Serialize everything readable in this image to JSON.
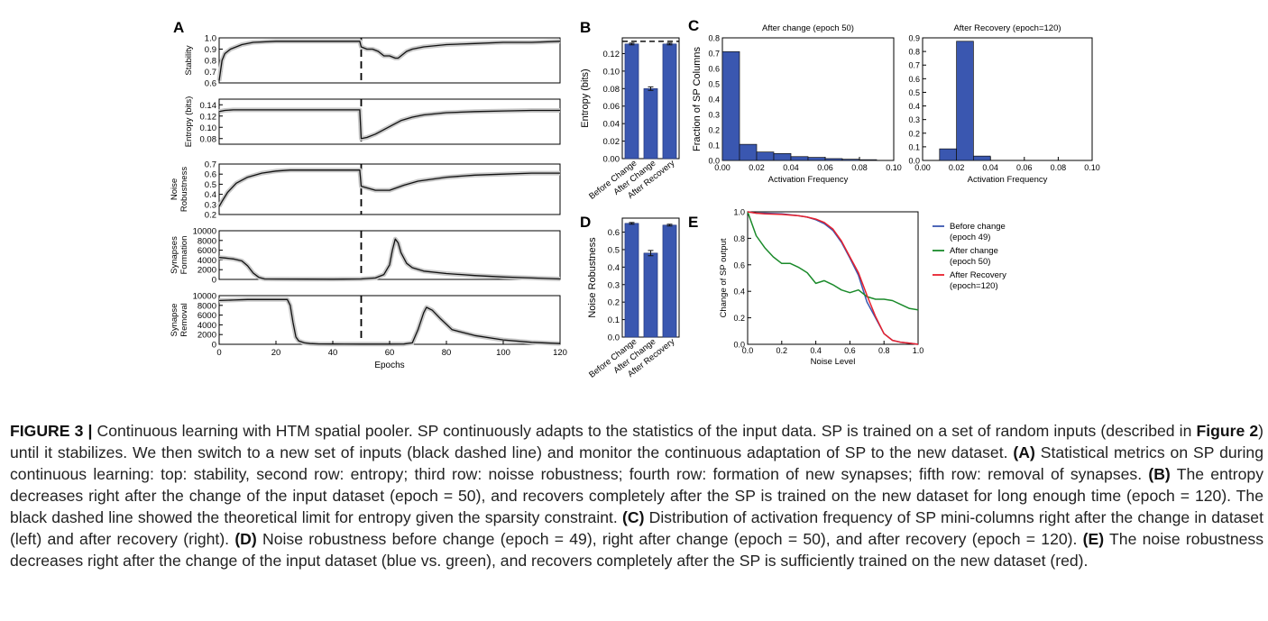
{
  "figure": {
    "panel_labels": {
      "A": "A",
      "B": "B",
      "C": "C",
      "D": "D",
      "E": "E"
    },
    "colors": {
      "blue": "#3a57b0",
      "green": "#1a8a2a",
      "red": "#e8202c",
      "bar": "#3a57b0",
      "axis": "#000000",
      "band": "#c9c9c9"
    }
  },
  "chart_data": [
    {
      "id": "A1",
      "type": "line",
      "ylabel": "Stability",
      "xlim": [
        0,
        120
      ],
      "ylim": [
        0.6,
        1.0
      ],
      "yticks": [
        "1.0",
        "0.9",
        "0.8",
        "0.7",
        "0.6"
      ],
      "change_epoch": 50,
      "x": [
        0,
        1,
        2,
        4,
        8,
        12,
        20,
        30,
        40,
        49.5,
        50,
        52,
        54,
        56,
        58,
        60,
        62,
        63,
        64,
        66,
        68,
        72,
        80,
        90,
        100,
        110,
        120
      ],
      "y": [
        0.62,
        0.8,
        0.86,
        0.9,
        0.94,
        0.96,
        0.97,
        0.97,
        0.97,
        0.97,
        0.92,
        0.9,
        0.9,
        0.88,
        0.84,
        0.84,
        0.82,
        0.82,
        0.84,
        0.88,
        0.9,
        0.92,
        0.94,
        0.95,
        0.96,
        0.96,
        0.97
      ]
    },
    {
      "id": "A2",
      "type": "line",
      "ylabel": "Entropy (bits)",
      "xlim": [
        0,
        120
      ],
      "ylim": [
        0.07,
        0.15
      ],
      "yticks": [
        "0.14",
        "0.12",
        "0.10",
        "0.08"
      ],
      "change_epoch": 50,
      "x": [
        0,
        2,
        5,
        10,
        20,
        30,
        40,
        49.5,
        50,
        52,
        55,
        58,
        61,
        64,
        68,
        72,
        80,
        90,
        100,
        110,
        120
      ],
      "y": [
        0.128,
        0.13,
        0.131,
        0.131,
        0.131,
        0.131,
        0.131,
        0.131,
        0.08,
        0.082,
        0.088,
        0.096,
        0.104,
        0.112,
        0.118,
        0.122,
        0.126,
        0.128,
        0.129,
        0.13,
        0.13
      ]
    },
    {
      "id": "A3",
      "type": "line",
      "ylabel": "Noise Robustness",
      "xlim": [
        0,
        120
      ],
      "ylim": [
        0.2,
        0.7
      ],
      "yticks": [
        "0.7",
        "0.6",
        "0.5",
        "0.4",
        "0.3",
        "0.2"
      ],
      "change_epoch": 50,
      "x": [
        0,
        1,
        3,
        6,
        10,
        15,
        20,
        25,
        30,
        40,
        49.5,
        50,
        55,
        60,
        65,
        70,
        80,
        90,
        100,
        110,
        120
      ],
      "y": [
        0.28,
        0.33,
        0.42,
        0.51,
        0.57,
        0.61,
        0.63,
        0.64,
        0.64,
        0.64,
        0.64,
        0.48,
        0.44,
        0.44,
        0.49,
        0.53,
        0.57,
        0.59,
        0.6,
        0.61,
        0.61
      ]
    },
    {
      "id": "A4",
      "type": "line",
      "ylabel": "Synapses Formation",
      "xlim": [
        0,
        120
      ],
      "ylim": [
        0,
        10000
      ],
      "yticks": [
        "10000",
        "8000",
        "6000",
        "4000",
        "2000",
        "0"
      ],
      "change_epoch": 50,
      "x": [
        0,
        2,
        5,
        8,
        10,
        12,
        14,
        16,
        20,
        30,
        40,
        50,
        55,
        58,
        60,
        61,
        62,
        63,
        64,
        66,
        68,
        72,
        80,
        90,
        100,
        110,
        120
      ],
      "y": [
        4500,
        4400,
        4200,
        3800,
        2800,
        1300,
        400,
        100,
        80,
        50,
        40,
        100,
        300,
        1000,
        3000,
        6000,
        8300,
        7500,
        5500,
        3300,
        2400,
        1700,
        1200,
        800,
        500,
        300,
        100
      ]
    },
    {
      "id": "A5",
      "type": "line",
      "ylabel": "Synapse Removal",
      "xlim": [
        0,
        120
      ],
      "ylim": [
        0,
        10000
      ],
      "yticks": [
        "10000",
        "8000",
        "6000",
        "4000",
        "2000",
        "0"
      ],
      "change_epoch": 50,
      "x": [
        0,
        5,
        10,
        15,
        20,
        24,
        25,
        26,
        27,
        28,
        30,
        32,
        35,
        40,
        50,
        60,
        65,
        68,
        70,
        72,
        73,
        75,
        78,
        82,
        90,
        100,
        110,
        120
      ],
      "y": [
        9000,
        9100,
        9200,
        9200,
        9200,
        9200,
        8000,
        4500,
        1500,
        700,
        300,
        150,
        80,
        50,
        40,
        40,
        50,
        300,
        3000,
        6500,
        7600,
        7000,
        5200,
        3000,
        1800,
        900,
        400,
        150
      ]
    },
    {
      "id": "A_xaxis",
      "xlabel": "Epochs",
      "xticks": [
        "0",
        "20",
        "40",
        "60",
        "80",
        "100",
        "120"
      ]
    },
    {
      "id": "B",
      "type": "bar",
      "ylabel": "Entropy (bits)",
      "categories": [
        "Before Change",
        "After Change",
        "After Recovery"
      ],
      "values": [
        0.131,
        0.08,
        0.131
      ],
      "errors": [
        0.001,
        0.002,
        0.001
      ],
      "limit": 0.134,
      "ylim": [
        0,
        0.138
      ],
      "yticks": [
        "0.12",
        "0.10",
        "0.08",
        "0.06",
        "0.04",
        "0.02",
        "0.00"
      ]
    },
    {
      "id": "C1",
      "type": "bar",
      "title": "After change (epoch 50)",
      "xlabel": "Activation Frequency",
      "ylabel": "Fraction of SP Columns",
      "xlim": [
        0,
        0.1
      ],
      "ylim": [
        0,
        0.8
      ],
      "x": [
        0.005,
        0.015,
        0.025,
        0.035,
        0.045,
        0.055,
        0.065,
        0.075,
        0.085
      ],
      "values": [
        0.71,
        0.105,
        0.055,
        0.045,
        0.025,
        0.02,
        0.012,
        0.008,
        0.005
      ],
      "xticks": [
        "0.00",
        "0.02",
        "0.04",
        "0.06",
        "0.08",
        "0.10"
      ],
      "yticks": [
        "0.8",
        "0.7",
        "0.6",
        "0.5",
        "0.4",
        "0.3",
        "0.2",
        "0.1",
        "0.0"
      ]
    },
    {
      "id": "C2",
      "type": "bar",
      "title": "After Recovery (epoch=120)",
      "xlabel": "Activation Frequency",
      "xlim": [
        0,
        0.1
      ],
      "ylim": [
        0,
        0.9
      ],
      "x": [
        0.015,
        0.025,
        0.035
      ],
      "values": [
        0.085,
        0.875,
        0.032
      ],
      "xticks": [
        "0.00",
        "0.02",
        "0.04",
        "0.06",
        "0.08",
        "0.10"
      ],
      "yticks": [
        "0.9",
        "0.8",
        "0.7",
        "0.6",
        "0.5",
        "0.4",
        "0.3",
        "0.2",
        "0.1",
        "0.0"
      ]
    },
    {
      "id": "D",
      "type": "bar",
      "ylabel": "Noise Robustness",
      "categories": [
        "Before Change",
        "After Change",
        "After Recovery"
      ],
      "values": [
        0.65,
        0.48,
        0.64
      ],
      "errors": [
        0.005,
        0.015,
        0.005
      ],
      "ylim": [
        0,
        0.68
      ],
      "yticks": [
        "0.6",
        "0.5",
        "0.4",
        "0.3",
        "0.2",
        "0.1",
        "0.0"
      ]
    },
    {
      "id": "E",
      "type": "line",
      "xlabel": "Noise Level",
      "ylabel": "Change of SP output",
      "xlim": [
        0,
        1
      ],
      "ylim": [
        0,
        1
      ],
      "xticks": [
        "0.0",
        "0.2",
        "0.4",
        "0.6",
        "0.8",
        "1.0"
      ],
      "yticks": [
        "1.0",
        "0.8",
        "0.6",
        "0.4",
        "0.2",
        "0.0"
      ],
      "series": [
        {
          "name": "Before change (epoch 49)",
          "color": "#3a57b0",
          "x": [
            0,
            0.05,
            0.1,
            0.2,
            0.3,
            0.35,
            0.4,
            0.45,
            0.5,
            0.55,
            0.6,
            0.65,
            0.7,
            0.75,
            0.8,
            0.85,
            0.9,
            0.95,
            1.0
          ],
          "y": [
            1,
            0.99,
            0.99,
            0.985,
            0.97,
            0.96,
            0.94,
            0.91,
            0.86,
            0.77,
            0.65,
            0.52,
            0.32,
            0.2,
            0.08,
            0.03,
            0.015,
            0.008,
            0
          ]
        },
        {
          "name": "After change (epoch 50)",
          "color": "#1a8a2a",
          "x": [
            0,
            0.05,
            0.1,
            0.15,
            0.2,
            0.25,
            0.3,
            0.35,
            0.4,
            0.45,
            0.5,
            0.55,
            0.6,
            0.65,
            0.7,
            0.75,
            0.8,
            0.85,
            0.9,
            0.95,
            1.0
          ],
          "y": [
            1,
            0.82,
            0.73,
            0.66,
            0.61,
            0.61,
            0.58,
            0.54,
            0.46,
            0.48,
            0.45,
            0.41,
            0.39,
            0.41,
            0.36,
            0.34,
            0.34,
            0.33,
            0.3,
            0.27,
            0.26
          ]
        },
        {
          "name": "After Recovery (epoch=120)",
          "color": "#e8202c",
          "x": [
            0,
            0.05,
            0.1,
            0.2,
            0.3,
            0.35,
            0.4,
            0.45,
            0.5,
            0.55,
            0.6,
            0.65,
            0.7,
            0.75,
            0.8,
            0.85,
            0.9,
            0.95,
            1.0
          ],
          "y": [
            1,
            0.99,
            0.985,
            0.98,
            0.97,
            0.96,
            0.945,
            0.92,
            0.87,
            0.78,
            0.66,
            0.54,
            0.37,
            0.21,
            0.08,
            0.03,
            0.015,
            0.008,
            0
          ]
        }
      ],
      "legend": [
        {
          "line1": "Before change",
          "line2": "(epoch 49)"
        },
        {
          "line1": "After change",
          "line2": "(epoch 50)"
        },
        {
          "line1": "After Recovery",
          "line2": "(epoch=120)"
        }
      ]
    }
  ],
  "caption": {
    "fig_label": "FIGURE 3 |",
    "part1": " Continuous learning with HTM spatial pooler. SP continuously adapts to the statistics of the input data. SP is trained on a set of random inputs (described in ",
    "fig2_ref": "Figure 2",
    "part2": ") until it stabilizes. We then switch to a new set of inputs (black dashed line) and monitor the continuous adaptation of SP to the new dataset. ",
    "a_label": "(A)",
    "a_text": " Statistical metrics on SP during continuous learning: top: stability, second row: entropy; third row: noisse robustness; fourth row: formation of new synapses; fifth row: removal of synapses. ",
    "b_label": "(B)",
    "b_text": " The entropy decreases right after the change of the input dataset (epoch = 50), and recovers completely after the SP is trained on the new dataset for long enough time (epoch = 120). The black dashed line showed the theoretical limit for entropy given the sparsity constraint. ",
    "c_label": "(C)",
    "c_text": " Distribution of activation frequency of SP mini-columns right after the change in dataset (left) and after recovery (right). ",
    "d_label": "(D)",
    "d_text": " Noise robustness before change (epoch = 49), right after change (epoch = 50), and after recovery (epoch = 120). ",
    "e_label": "(E)",
    "e_text": " The noise robustness decreases right after the change of the input dataset (blue vs. green), and recovers completely after the SP is sufficiently trained on the new dataset (red)."
  }
}
